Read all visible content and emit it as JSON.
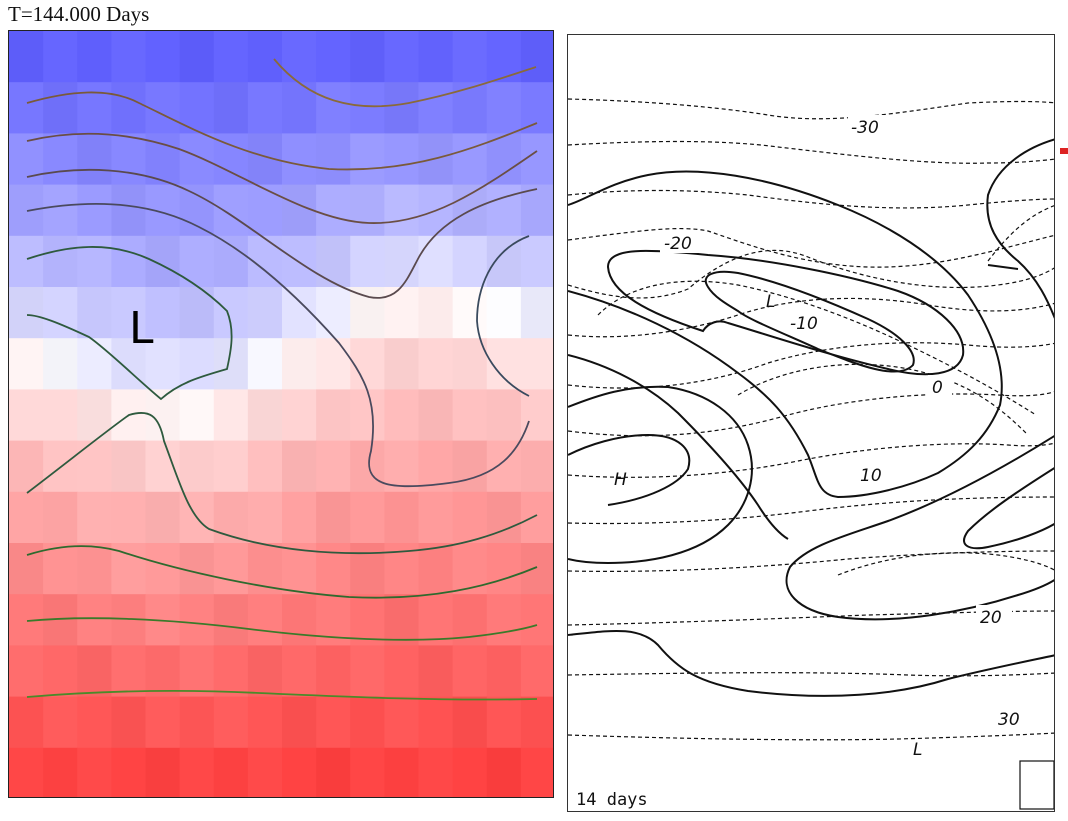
{
  "title": "T=144.000 Days",
  "left_panel": {
    "low_label": "L"
  },
  "right_panel": {
    "contour_labels": [
      "-30",
      "-20",
      "-10",
      "0",
      "10",
      "20",
      "30"
    ],
    "low_labels": [
      "L",
      "L"
    ],
    "high_label": "H",
    "time_label": "14 days"
  },
  "colors": {
    "cold": "#5a5aff",
    "neutral": "#ffffff",
    "warm": "#ff3b3b"
  }
}
